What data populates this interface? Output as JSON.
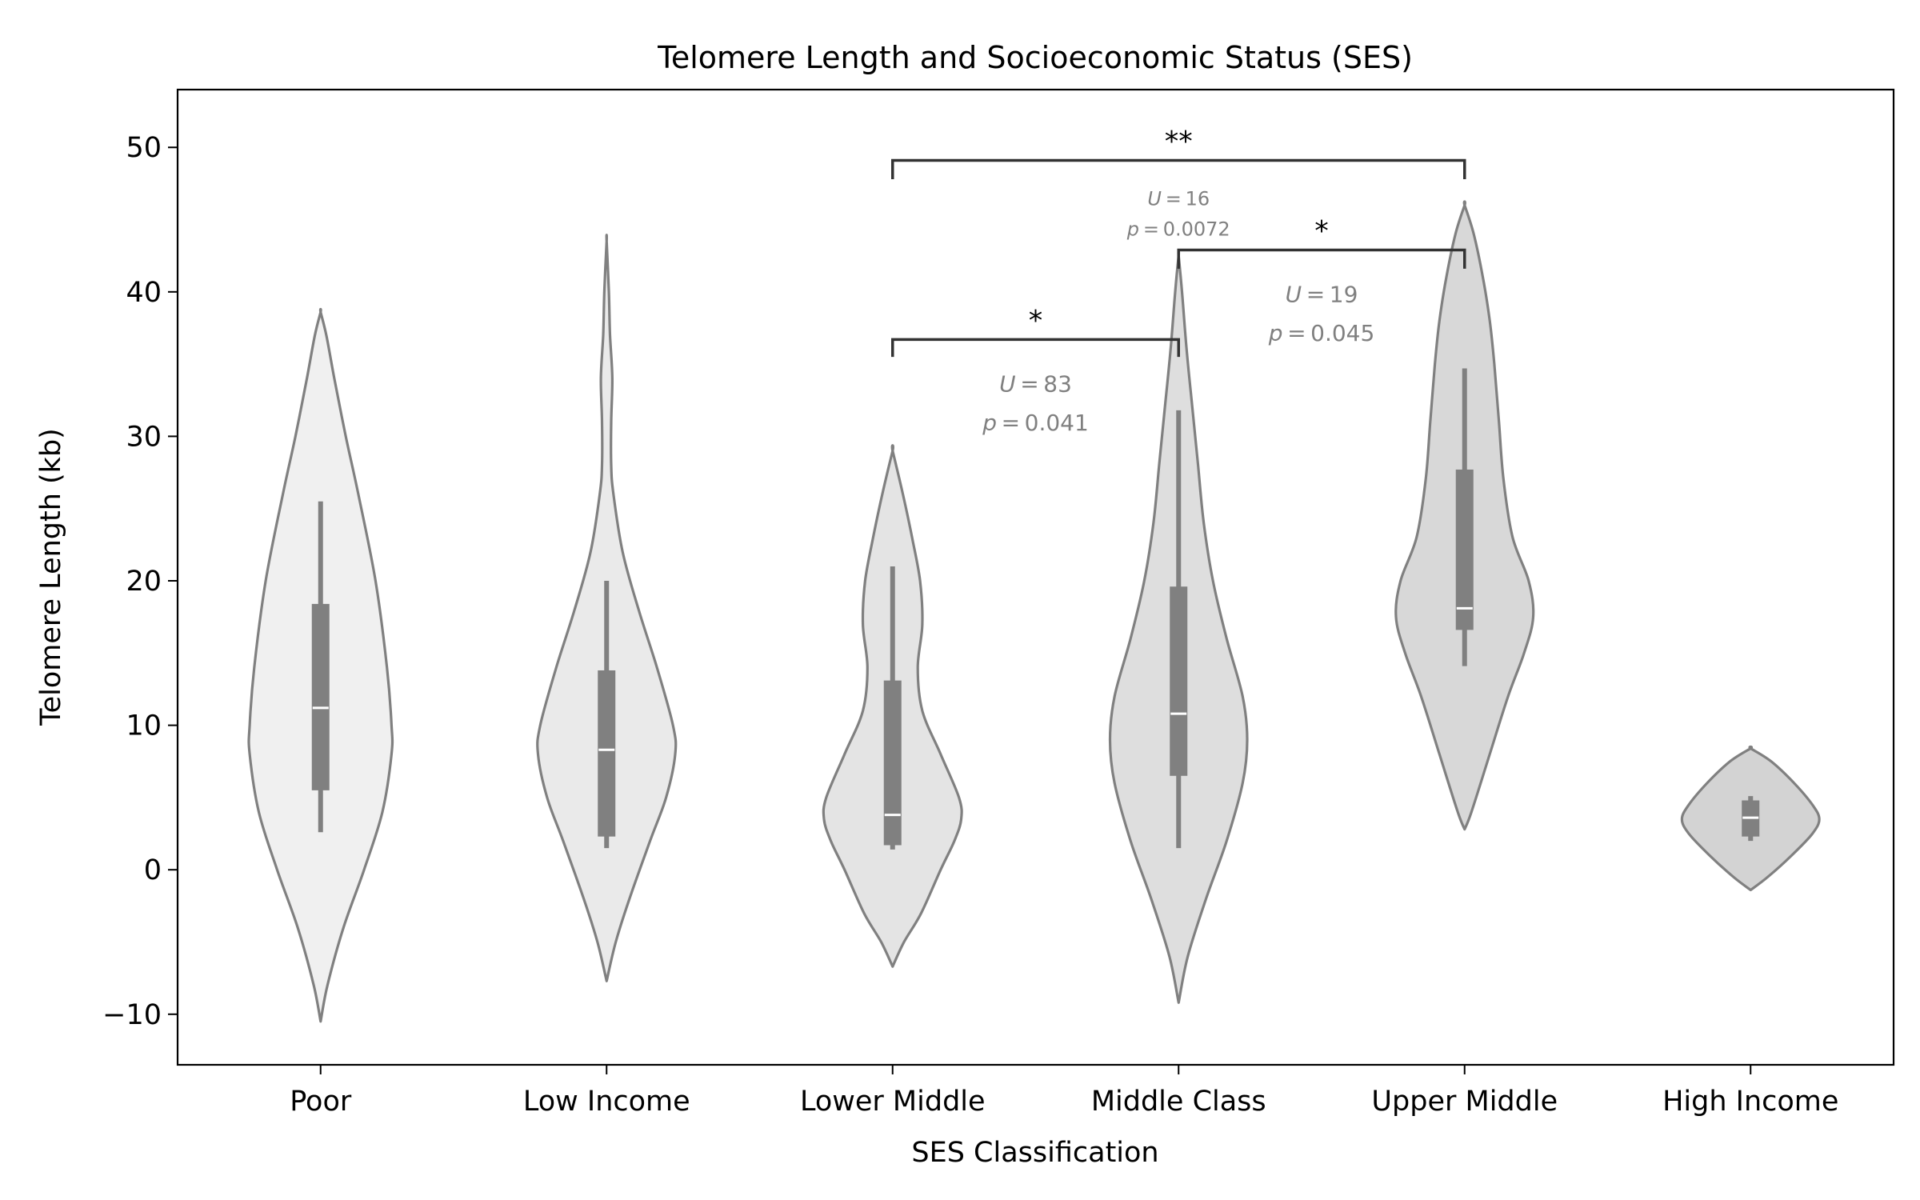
{
  "chart_data": {
    "type": "violin",
    "title": "Telomere Length and Socioeconomic Status (SES)",
    "xlabel": "SES Classification",
    "ylabel": "Telomere Length (kb)",
    "ylim": [
      -13.5,
      54
    ],
    "yticks": [
      -10,
      0,
      10,
      20,
      30,
      40,
      50
    ],
    "ytick_labels": [
      "−10",
      "0",
      "10",
      "20",
      "30",
      "40",
      "50"
    ],
    "grid": false,
    "legend": "none",
    "categories": [
      "Poor",
      "Low Income",
      "Lower Middle",
      "Middle Class",
      "Upper Middle",
      "High Income"
    ],
    "colors": {
      "fills": [
        "#f0f0f0",
        "#eaeaea",
        "#e4e4e4",
        "#dedede",
        "#d8d8d8",
        "#d3d3d3"
      ],
      "outline": "#808080",
      "box": "#808080",
      "median": "#ffffff",
      "bracket": "#333333",
      "annotation": "#808080"
    },
    "violins": [
      {
        "category": "Poor",
        "profile": [
          [
            -10.5,
            0
          ],
          [
            -8,
            0.06
          ],
          [
            -4,
            0.2
          ],
          [
            0,
            0.38
          ],
          [
            4,
            0.54
          ],
          [
            8,
            0.62
          ],
          [
            10,
            0.62
          ],
          [
            14,
            0.58
          ],
          [
            20,
            0.48
          ],
          [
            26,
            0.33
          ],
          [
            30,
            0.22
          ],
          [
            34,
            0.12
          ],
          [
            37,
            0.05
          ],
          [
            38.6,
            0
          ]
        ],
        "whisker": [
          2.6,
          25.5
        ],
        "q1": 5.5,
        "median": 11.2,
        "q3": 18.4
      },
      {
        "category": "Low Income",
        "profile": [
          [
            -7.7,
            0
          ],
          [
            -5,
            0.08
          ],
          [
            -2,
            0.2
          ],
          [
            2,
            0.38
          ],
          [
            5,
            0.52
          ],
          [
            8,
            0.6
          ],
          [
            10,
            0.58
          ],
          [
            14,
            0.44
          ],
          [
            18,
            0.28
          ],
          [
            22,
            0.14
          ],
          [
            26,
            0.06
          ],
          [
            28,
            0.04
          ],
          [
            31,
            0.04
          ],
          [
            34,
            0.05
          ],
          [
            37,
            0.03
          ],
          [
            40,
            0.02
          ],
          [
            43.5,
            0
          ]
        ],
        "whisker": [
          1.5,
          20.0
        ],
        "q1": 2.3,
        "median": 8.3,
        "q3": 13.8
      },
      {
        "category": "Lower Middle",
        "profile": [
          [
            -6.7,
            0
          ],
          [
            -5,
            0.1
          ],
          [
            -3,
            0.25
          ],
          [
            0,
            0.42
          ],
          [
            2,
            0.54
          ],
          [
            3.5,
            0.6
          ],
          [
            5,
            0.58
          ],
          [
            8,
            0.42
          ],
          [
            11,
            0.26
          ],
          [
            14,
            0.22
          ],
          [
            17,
            0.26
          ],
          [
            20,
            0.24
          ],
          [
            23,
            0.17
          ],
          [
            26,
            0.09
          ],
          [
            29,
            0
          ]
        ],
        "whisker": [
          1.4,
          21.0
        ],
        "q1": 1.7,
        "median": 3.8,
        "q3": 13.1
      },
      {
        "category": "Middle Class",
        "profile": [
          [
            -9.2,
            0
          ],
          [
            -6,
            0.08
          ],
          [
            -2,
            0.24
          ],
          [
            2,
            0.42
          ],
          [
            6,
            0.56
          ],
          [
            9,
            0.6
          ],
          [
            12,
            0.56
          ],
          [
            16,
            0.42
          ],
          [
            20,
            0.3
          ],
          [
            24,
            0.22
          ],
          [
            28,
            0.17
          ],
          [
            32,
            0.12
          ],
          [
            36,
            0.07
          ],
          [
            40,
            0.03
          ],
          [
            42.5,
            0
          ]
        ],
        "whisker": [
          1.5,
          31.8
        ],
        "q1": 6.5,
        "median": 10.8,
        "q3": 19.6
      },
      {
        "category": "Upper Middle",
        "profile": [
          [
            2.8,
            0
          ],
          [
            4,
            0.06
          ],
          [
            8,
            0.22
          ],
          [
            12,
            0.38
          ],
          [
            15,
            0.52
          ],
          [
            17.5,
            0.6
          ],
          [
            20,
            0.56
          ],
          [
            23,
            0.42
          ],
          [
            27,
            0.34
          ],
          [
            31,
            0.3
          ],
          [
            35,
            0.26
          ],
          [
            38,
            0.22
          ],
          [
            41,
            0.16
          ],
          [
            44,
            0.08
          ],
          [
            46,
            0
          ]
        ],
        "whisker": [
          14.1,
          34.7
        ],
        "q1": 16.6,
        "median": 18.1,
        "q3": 27.7
      },
      {
        "category": "High Income",
        "profile": [
          [
            -1.4,
            0
          ],
          [
            -0.5,
            0.15
          ],
          [
            1,
            0.36
          ],
          [
            2.5,
            0.54
          ],
          [
            3.5,
            0.6
          ],
          [
            4.5,
            0.54
          ],
          [
            6,
            0.38
          ],
          [
            7.5,
            0.18
          ],
          [
            8.4,
            0
          ]
        ],
        "whisker": [
          2.0,
          5.1
        ],
        "q1": 2.3,
        "median": 3.6,
        "q3": 4.8
      }
    ],
    "comparisons": [
      {
        "from": "Lower Middle",
        "to": "Middle Class",
        "y_low": 35.5,
        "y_top": 36.7,
        "stars": "*",
        "U": "83",
        "p": "0.041",
        "label_y": [
          33.1,
          30.4
        ],
        "label_x_index": 2.5,
        "font": 28
      },
      {
        "from": "Middle Class",
        "to": "Upper Middle",
        "y_low": 41.6,
        "y_top": 42.9,
        "stars": "*",
        "U": "19",
        "p": "0.045",
        "label_y": [
          39.3,
          36.6
        ],
        "label_x_index": 3.5,
        "font": 28
      },
      {
        "from": "Lower Middle",
        "to": "Upper Middle",
        "y_low": 47.8,
        "y_top": 49.1,
        "stars": "**",
        "U": "16",
        "p": "0.0072",
        "label_y": [
          46.0,
          43.9
        ],
        "label_x_index": 3.0,
        "font": 24
      }
    ]
  }
}
